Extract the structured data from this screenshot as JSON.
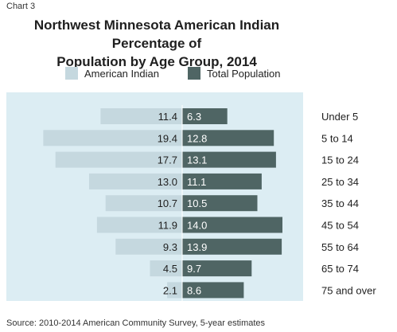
{
  "header": {
    "chart_number": "Chart 3",
    "title_line1": "Northwest Minnesota American Indian Percentage of",
    "title_line2": "Population by Age Group, 2014"
  },
  "source": "Source: 2010-2014 American Community Survey, 5-year estimates",
  "colors": {
    "american_indian": "#c5d8df",
    "total_population": "#4f6564",
    "plot_background": "#dcedf3"
  },
  "chart_data": {
    "type": "bar",
    "orientation": "horizontal",
    "layout": "diverging",
    "title": "Northwest Minnesota American Indian Percentage of Population by Age Group, 2014",
    "categories": [
      "Under 5",
      "5 to 14",
      "15 to 24",
      "25 to 34",
      "35 to 44",
      "45 to 54",
      "55 to 64",
      "65 to 74",
      "75 and over"
    ],
    "series": [
      {
        "name": "American Indian",
        "values": [
          11.4,
          19.4,
          17.7,
          13.0,
          10.7,
          11.9,
          9.3,
          4.5,
          2.1
        ]
      },
      {
        "name": "Total Population",
        "values": [
          6.3,
          12.8,
          13.1,
          11.1,
          10.5,
          14.0,
          13.9,
          9.7,
          8.6
        ]
      }
    ],
    "legend": "top",
    "grid": false
  }
}
